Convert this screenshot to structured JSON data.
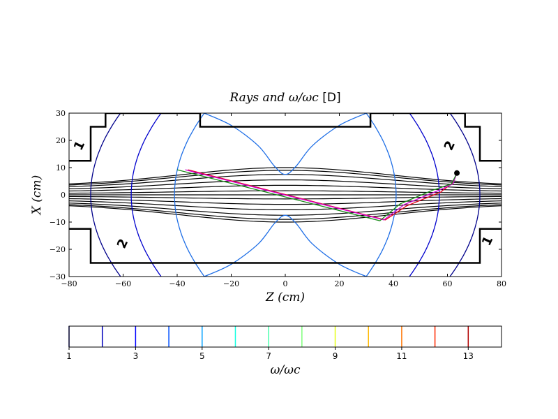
{
  "chart_data": [
    {
      "type": "line",
      "title": "Rays and ω/ωc",
      "title_tag": "[D]",
      "xlabel": "Z (cm)",
      "ylabel": "X (cm)",
      "xlim": [
        -80,
        80
      ],
      "ylim": [
        -30,
        30
      ],
      "xticks": [
        -80,
        -60,
        -40,
        -20,
        0,
        20,
        40,
        60,
        80
      ],
      "yticks": [
        -30,
        -20,
        -10,
        0,
        10,
        20,
        30
      ],
      "grid": false,
      "colors": {
        "wall": "#000000",
        "flux": "#000000",
        "contour_1": "#00008b",
        "contour_2": "#0000cd",
        "contour_3": "#1e6ee6",
        "ray_red": "#e8001c",
        "ray_magenta": "#d000d0",
        "ray_green": "#1a8a1a"
      },
      "vessel_wall_upper": [
        [
          -80,
          12.5
        ],
        [
          -72,
          12.5
        ],
        [
          -72,
          25
        ],
        [
          -66.5,
          25
        ],
        [
          -66.5,
          30
        ],
        [
          -31.5,
          30
        ],
        [
          -31.5,
          25
        ],
        [
          31.5,
          25
        ],
        [
          31.5,
          30
        ],
        [
          66.5,
          30
        ],
        [
          66.5,
          25
        ],
        [
          72,
          25
        ],
        [
          72,
          12.5
        ],
        [
          80,
          12.5
        ]
      ],
      "vessel_wall_lower": [
        [
          -80,
          -12.5
        ],
        [
          -72,
          -12.5
        ],
        [
          -72,
          -25
        ],
        [
          72,
          -25
        ],
        [
          72,
          -12.5
        ],
        [
          80,
          -12.5
        ]
      ],
      "flux_surfaces_peak": [
        1.5,
        3.5,
        5.5,
        7.5,
        9,
        10
      ],
      "contours": [
        {
          "level": 1,
          "label": "1",
          "vertex_z": -72,
          "curvature": 0.0123,
          "color_key": "contour_1"
        },
        {
          "level": 1,
          "vertex_z": 72,
          "curvature": 0.0123,
          "color_key": "contour_1"
        },
        {
          "level": 2,
          "label": "2",
          "vertex_z": -57,
          "curvature": 0.0123,
          "color_key": "contour_2"
        },
        {
          "level": 2,
          "vertex_z": 57,
          "curvature": 0.0123,
          "color_key": "contour_2"
        },
        {
          "level": 3,
          "vertex_z": -41,
          "curvature": 0.0123,
          "color_key": "contour_3"
        },
        {
          "level": 3,
          "vertex_z": 41,
          "curvature": 0.0123,
          "color_key": "contour_3"
        }
      ],
      "contour_labels": [
        {
          "text": "1",
          "z": -76,
          "x": 18,
          "color_key": "contour_1"
        },
        {
          "text": "1",
          "z": 75,
          "x": -17,
          "color_key": "contour_1"
        },
        {
          "text": "2",
          "z": -60,
          "x": -18,
          "color_key": "contour_1"
        },
        {
          "text": "2",
          "z": 61,
          "x": 18,
          "color_key": "contour_1"
        }
      ],
      "level3_inner_upper": [
        [
          -30,
          30
        ],
        [
          -20,
          25.5
        ],
        [
          -10,
          18
        ],
        [
          -4,
          10.5
        ],
        [
          0,
          7.5
        ],
        [
          4,
          10.5
        ],
        [
          10,
          18
        ],
        [
          20,
          25.5
        ],
        [
          30,
          30
        ]
      ],
      "level3_inner_lower": [
        [
          -30,
          -30
        ],
        [
          -20,
          -25.5
        ],
        [
          -10,
          -18
        ],
        [
          -4,
          -10.5
        ],
        [
          0,
          -7.5
        ],
        [
          4,
          -10.5
        ],
        [
          10,
          -18
        ],
        [
          20,
          -25.5
        ],
        [
          30,
          -30
        ]
      ],
      "launch_point": {
        "z": 63.5,
        "x": 8
      },
      "rays": [
        {
          "color_key": "ray_red",
          "points": [
            [
              63.5,
              8
            ],
            [
              62,
              4.5
            ],
            [
              57.5,
              1
            ],
            [
              45,
              -4
            ],
            [
              37,
              -9.2
            ],
            [
              -36,
              9.2
            ]
          ]
        },
        {
          "color_key": "ray_magenta",
          "points": [
            [
              63.5,
              8
            ],
            [
              62,
              4
            ],
            [
              56,
              1.3
            ],
            [
              44,
              -3.6
            ],
            [
              36.5,
              -9.2
            ],
            [
              -37,
              9.2
            ]
          ]
        },
        {
          "color_key": "ray_green",
          "points": [
            [
              63.5,
              8
            ],
            [
              61.5,
              4
            ],
            [
              54.5,
              1.7
            ],
            [
              42.5,
              -3.3
            ],
            [
              35,
              -9.5
            ],
            [
              -40,
              9.2
            ]
          ]
        }
      ]
    },
    {
      "type": "colorbar",
      "xlabel": "ω/ωc",
      "range": [
        1,
        14
      ],
      "tick_labels": [
        1,
        3,
        5,
        7,
        9,
        11,
        13
      ],
      "levels": [
        {
          "value": 1,
          "color": "#00007f"
        },
        {
          "value": 2,
          "color": "#0000bb"
        },
        {
          "value": 3,
          "color": "#0000ff"
        },
        {
          "value": 4,
          "color": "#0050ff"
        },
        {
          "value": 5,
          "color": "#00a0ff"
        },
        {
          "value": 6,
          "color": "#15ffe1"
        },
        {
          "value": 7,
          "color": "#49ffad"
        },
        {
          "value": 8,
          "color": "#7dff7a"
        },
        {
          "value": 9,
          "color": "#e4ff13"
        },
        {
          "value": 10,
          "color": "#ffb900"
        },
        {
          "value": 11,
          "color": "#ff7300"
        },
        {
          "value": 12,
          "color": "#ff2900"
        },
        {
          "value": 13,
          "color": "#b20000"
        }
      ]
    }
  ]
}
